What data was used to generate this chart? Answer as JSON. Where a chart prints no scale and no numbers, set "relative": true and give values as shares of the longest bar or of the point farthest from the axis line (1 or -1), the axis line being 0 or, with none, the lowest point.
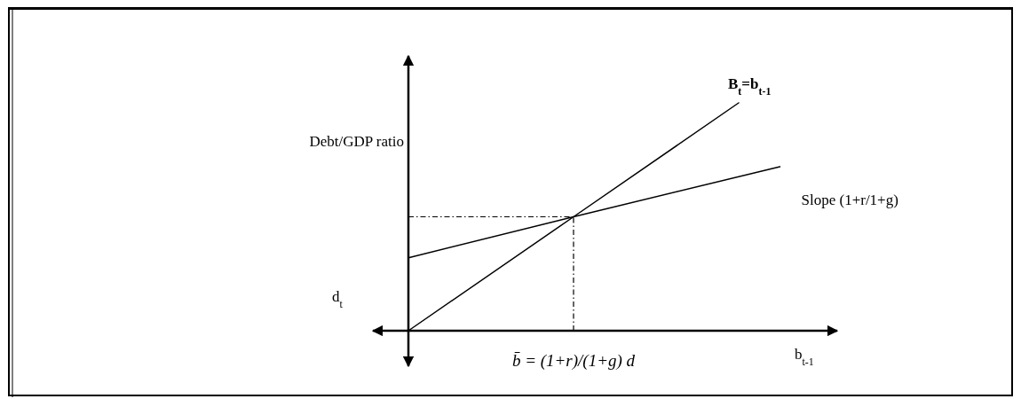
{
  "chart_data": {
    "type": "line",
    "relative": true,
    "xlabel": "b$_{t-1}$",
    "categories": [
      null,
      null,
      null,
      null,
      null,
      null,
      null,
      null,
      null,
      null
    ],
    "series": [
      {
        "name": "B$_{t}$=b$_{t-1}$",
        "color": "#000000",
        "values": [
          0,
          null,
          null,
          null,
          0.5,
          null,
          null,
          null,
          1,
          null
        ]
      },
      {
        "name": "Slope (1+r/1+g)",
        "color": "#000000",
        "values": [
          0.32,
          null,
          null,
          null,
          0.5,
          null,
          null,
          null,
          null,
          0.72
        ]
      }
    ],
    "ref_lines": [
      {
        "axis": "y",
        "value": 0.5,
        "line_style": "dashdot",
        "color": "#000000"
      }
    ],
    "annotations": [
      "Debt/GDP ratio",
      "d$_{t}$",
      "b̄ = (1+r)/(1+g) d"
    ]
  }
}
